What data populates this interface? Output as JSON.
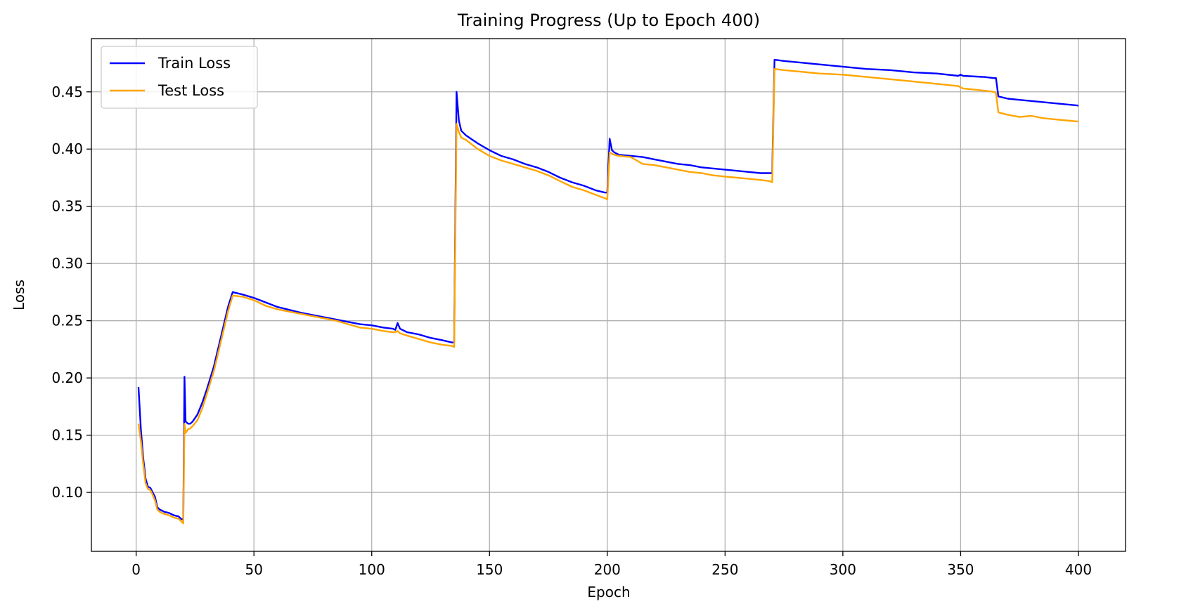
{
  "chart_data": {
    "type": "line",
    "title": "Training Progress (Up to Epoch 400)",
    "xlabel": "Epoch",
    "ylabel": "Loss",
    "xlim": [
      -19,
      420
    ],
    "ylim": [
      0.0485,
      0.4965
    ],
    "x_ticks": [
      0,
      50,
      100,
      150,
      200,
      250,
      300,
      350,
      400
    ],
    "x_tick_labels": [
      "0",
      "50",
      "100",
      "150",
      "200",
      "250",
      "300",
      "350",
      "400"
    ],
    "y_ticks": [
      0.1,
      0.15,
      0.2,
      0.25,
      0.3,
      0.35,
      0.4,
      0.45
    ],
    "y_tick_labels": [
      "0.10",
      "0.15",
      "0.20",
      "0.25",
      "0.30",
      "0.35",
      "0.40",
      "0.45"
    ],
    "grid": true,
    "legend_position": "top-left",
    "series": [
      {
        "name": "Train Loss",
        "color": "#0000ff",
        "x": [
          1,
          2,
          3,
          4,
          5,
          6,
          7,
          8,
          9,
          10,
          12,
          14,
          16,
          18,
          19,
          20,
          20.5,
          21,
          22,
          23,
          24,
          26,
          28,
          30,
          33,
          36,
          39,
          41,
          45,
          50,
          55,
          60,
          70,
          80,
          85,
          90,
          95,
          100,
          105,
          109,
          110,
          111,
          112,
          115,
          120,
          125,
          130,
          134,
          135,
          136,
          137,
          138,
          140,
          145,
          150,
          155,
          160,
          165,
          170,
          175,
          180,
          185,
          190,
          195,
          199,
          200,
          201,
          202,
          203,
          205,
          210,
          215,
          220,
          225,
          230,
          235,
          240,
          245,
          250,
          255,
          260,
          265,
          269,
          270,
          271,
          275,
          280,
          290,
          300,
          310,
          320,
          330,
          340,
          349,
          350,
          351,
          360,
          364,
          365,
          366,
          370,
          375,
          380,
          385,
          390,
          395,
          400
        ],
        "y": [
          0.192,
          0.155,
          0.13,
          0.112,
          0.105,
          0.104,
          0.1,
          0.096,
          0.087,
          0.085,
          0.083,
          0.082,
          0.08,
          0.079,
          0.077,
          0.076,
          0.201,
          0.162,
          0.16,
          0.16,
          0.162,
          0.168,
          0.178,
          0.19,
          0.21,
          0.236,
          0.262,
          0.275,
          0.273,
          0.27,
          0.266,
          0.262,
          0.257,
          0.253,
          0.251,
          0.249,
          0.247,
          0.246,
          0.244,
          0.243,
          0.242,
          0.248,
          0.243,
          0.24,
          0.238,
          0.235,
          0.233,
          0.231,
          0.231,
          0.45,
          0.425,
          0.416,
          0.412,
          0.405,
          0.399,
          0.394,
          0.391,
          0.387,
          0.384,
          0.38,
          0.375,
          0.371,
          0.368,
          0.364,
          0.362,
          0.362,
          0.409,
          0.399,
          0.397,
          0.395,
          0.394,
          0.393,
          0.391,
          0.389,
          0.387,
          0.386,
          0.384,
          0.383,
          0.382,
          0.381,
          0.38,
          0.379,
          0.379,
          0.379,
          0.478,
          0.477,
          0.476,
          0.474,
          0.472,
          0.47,
          0.469,
          0.467,
          0.466,
          0.464,
          0.465,
          0.464,
          0.463,
          0.462,
          0.462,
          0.446,
          0.444,
          0.443,
          0.442,
          0.441,
          0.44,
          0.439,
          0.438
        ]
      },
      {
        "name": "Test Loss",
        "color": "#ffa500",
        "x": [
          1,
          2,
          3,
          4,
          5,
          6,
          7,
          8,
          9,
          10,
          12,
          14,
          16,
          18,
          19,
          20,
          20.5,
          21,
          22,
          23,
          24,
          26,
          28,
          30,
          33,
          36,
          39,
          41,
          45,
          50,
          55,
          60,
          70,
          80,
          85,
          90,
          95,
          100,
          105,
          109,
          110,
          111,
          112,
          115,
          120,
          125,
          130,
          134,
          135,
          136,
          137,
          138,
          140,
          145,
          150,
          155,
          160,
          165,
          170,
          175,
          180,
          185,
          190,
          195,
          199,
          200,
          201,
          202,
          203,
          205,
          210,
          215,
          220,
          225,
          230,
          235,
          240,
          245,
          250,
          255,
          260,
          265,
          269,
          270,
          271,
          275,
          280,
          290,
          300,
          310,
          320,
          330,
          340,
          349,
          350,
          351,
          360,
          364,
          365,
          366,
          370,
          375,
          380,
          385,
          390,
          395,
          400
        ],
        "y": [
          0.16,
          0.145,
          0.125,
          0.108,
          0.103,
          0.102,
          0.098,
          0.093,
          0.085,
          0.083,
          0.081,
          0.08,
          0.078,
          0.077,
          0.075,
          0.073,
          0.16,
          0.152,
          0.155,
          0.156,
          0.158,
          0.163,
          0.173,
          0.186,
          0.206,
          0.232,
          0.258,
          0.272,
          0.271,
          0.268,
          0.263,
          0.26,
          0.256,
          0.252,
          0.25,
          0.247,
          0.244,
          0.243,
          0.241,
          0.24,
          0.24,
          0.241,
          0.239,
          0.237,
          0.234,
          0.231,
          0.229,
          0.228,
          0.227,
          0.422,
          0.415,
          0.41,
          0.408,
          0.4,
          0.394,
          0.39,
          0.387,
          0.384,
          0.381,
          0.377,
          0.372,
          0.367,
          0.364,
          0.36,
          0.357,
          0.356,
          0.397,
          0.396,
          0.395,
          0.394,
          0.393,
          0.387,
          0.386,
          0.384,
          0.382,
          0.38,
          0.379,
          0.377,
          0.376,
          0.375,
          0.374,
          0.373,
          0.372,
          0.371,
          0.47,
          0.469,
          0.468,
          0.466,
          0.465,
          0.463,
          0.461,
          0.459,
          0.457,
          0.455,
          0.454,
          0.453,
          0.451,
          0.45,
          0.449,
          0.432,
          0.43,
          0.428,
          0.429,
          0.427,
          0.426,
          0.425,
          0.424
        ]
      }
    ]
  }
}
